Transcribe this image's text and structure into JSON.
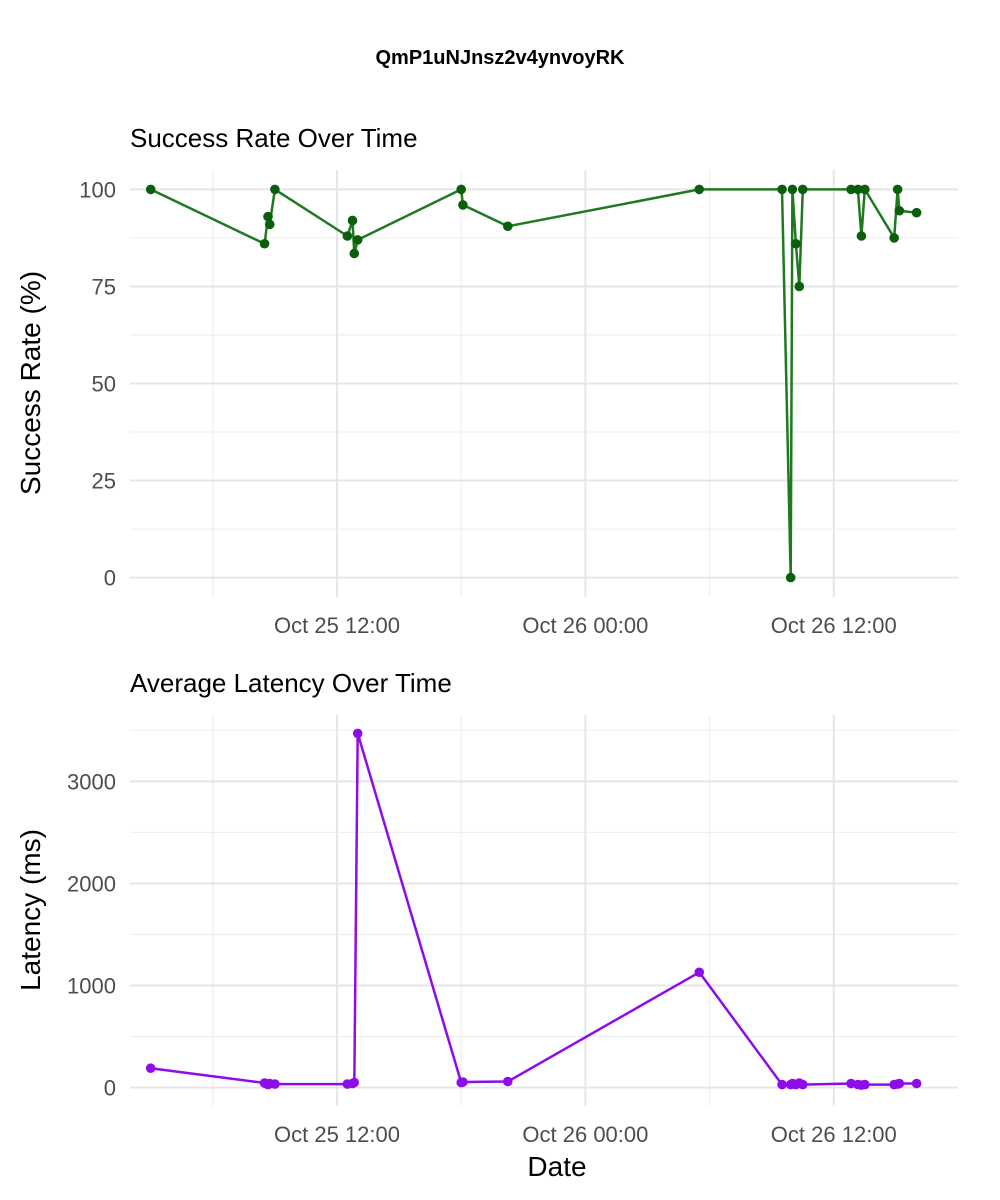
{
  "title": "QmP1uNJnsz2v4ynvoyRK",
  "xlabel": "Date",
  "chart_data": [
    {
      "type": "line",
      "title": "Success Rate Over Time",
      "xlabel": "",
      "ylabel": "Success Rate (%)",
      "ylim": [
        -5,
        105
      ],
      "yticks": [
        0,
        25,
        50,
        75,
        100
      ],
      "ytick_labels": [
        "0",
        "25",
        "50",
        "75",
        "100"
      ],
      "xlim": [
        "2024-10-25T02:00",
        "2024-10-26T18:00"
      ],
      "xticks": [
        "2024-10-25T12:00",
        "2024-10-26T00:00",
        "2024-10-26T12:00"
      ],
      "xtick_labels": [
        "Oct 25 12:00",
        "Oct 26 00:00",
        "Oct 26 12:00"
      ],
      "grid": true,
      "colors": {
        "line": "#1f7a1f",
        "point": "#0b5e0b"
      },
      "series": [
        {
          "x": [
            "2024-10-25T03:00",
            "2024-10-25T08:30",
            "2024-10-25T08:40",
            "2024-10-25T08:45",
            "2024-10-25T09:00",
            "2024-10-25T12:30",
            "2024-10-25T12:45",
            "2024-10-25T12:50",
            "2024-10-25T13:00",
            "2024-10-25T18:00",
            "2024-10-25T18:05",
            "2024-10-25T20:15",
            "2024-10-26T05:30",
            "2024-10-26T09:30",
            "2024-10-26T09:55",
            "2024-10-26T10:00",
            "2024-10-26T10:10",
            "2024-10-26T10:20",
            "2024-10-26T10:30",
            "2024-10-26T12:50",
            "2024-10-26T13:10",
            "2024-10-26T13:20",
            "2024-10-26T13:30",
            "2024-10-26T14:55",
            "2024-10-26T15:05",
            "2024-10-26T15:10",
            "2024-10-26T16:00"
          ],
          "values": [
            100,
            86,
            93,
            91,
            100,
            88,
            92,
            83.5,
            87,
            100,
            96,
            90.5,
            100,
            100,
            0,
            100,
            86,
            75,
            100,
            100,
            100,
            88,
            100,
            87.5,
            100,
            94.5,
            94
          ]
        }
      ]
    },
    {
      "type": "line",
      "title": "Average Latency Over Time",
      "xlabel": "Date",
      "ylabel": "Latency (ms)",
      "ylim": [
        -180,
        3650
      ],
      "yticks": [
        0,
        1000,
        2000,
        3000
      ],
      "ytick_labels": [
        "0",
        "1000",
        "2000",
        "3000"
      ],
      "xlim": [
        "2024-10-25T02:00",
        "2024-10-26T18:00"
      ],
      "xticks": [
        "2024-10-25T12:00",
        "2024-10-26T00:00",
        "2024-10-26T12:00"
      ],
      "xtick_labels": [
        "Oct 25 12:00",
        "Oct 26 00:00",
        "Oct 26 12:00"
      ],
      "grid": true,
      "colors": {
        "line": "#8e0ce8",
        "point": "#8e0ce8"
      },
      "series": [
        {
          "x": [
            "2024-10-25T03:00",
            "2024-10-25T08:30",
            "2024-10-25T08:40",
            "2024-10-25T08:45",
            "2024-10-25T09:00",
            "2024-10-25T12:30",
            "2024-10-25T12:45",
            "2024-10-25T12:50",
            "2024-10-25T13:00",
            "2024-10-25T18:00",
            "2024-10-25T18:05",
            "2024-10-25T20:15",
            "2024-10-26T05:30",
            "2024-10-26T09:30",
            "2024-10-26T09:55",
            "2024-10-26T10:00",
            "2024-10-26T10:10",
            "2024-10-26T10:20",
            "2024-10-26T10:30",
            "2024-10-26T12:50",
            "2024-10-26T13:10",
            "2024-10-26T13:20",
            "2024-10-26T13:30",
            "2024-10-26T14:55",
            "2024-10-26T15:05",
            "2024-10-26T15:10",
            "2024-10-26T16:00"
          ],
          "values": [
            190,
            45,
            30,
            40,
            35,
            35,
            40,
            50,
            3470,
            50,
            55,
            60,
            1130,
            30,
            30,
            40,
            30,
            45,
            30,
            40,
            30,
            25,
            30,
            30,
            35,
            40,
            40
          ]
        }
      ]
    }
  ]
}
